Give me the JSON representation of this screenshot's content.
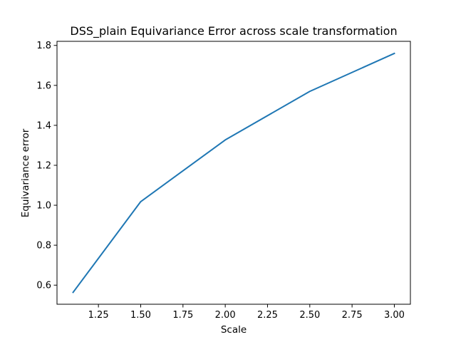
{
  "chart_data": {
    "type": "line",
    "title": "DSS_plain Equivariance Error across scale transformation",
    "xlabel": "Scale",
    "ylabel": "Equivariance error",
    "xlim": [
      1.005,
      3.095
    ],
    "ylim": [
      0.5045,
      1.8205
    ],
    "xticks": [
      1.25,
      1.5,
      1.75,
      2.0,
      2.25,
      2.5,
      2.75,
      3.0
    ],
    "xtick_labels": [
      "1.25",
      "1.50",
      "1.75",
      "2.00",
      "2.25",
      "2.50",
      "2.75",
      "3.00"
    ],
    "yticks": [
      0.6,
      0.8,
      1.0,
      1.2,
      1.4,
      1.6,
      1.8
    ],
    "ytick_labels": [
      "0.6",
      "0.8",
      "1.0",
      "1.2",
      "1.4",
      "1.6",
      "1.8"
    ],
    "grid": false,
    "series": [
      {
        "color": "#1f77b4",
        "x": [
          1.1,
          1.5,
          2.0,
          2.5,
          3.0
        ],
        "y": [
          0.564,
          1.018,
          1.327,
          1.57,
          1.76
        ]
      }
    ]
  }
}
